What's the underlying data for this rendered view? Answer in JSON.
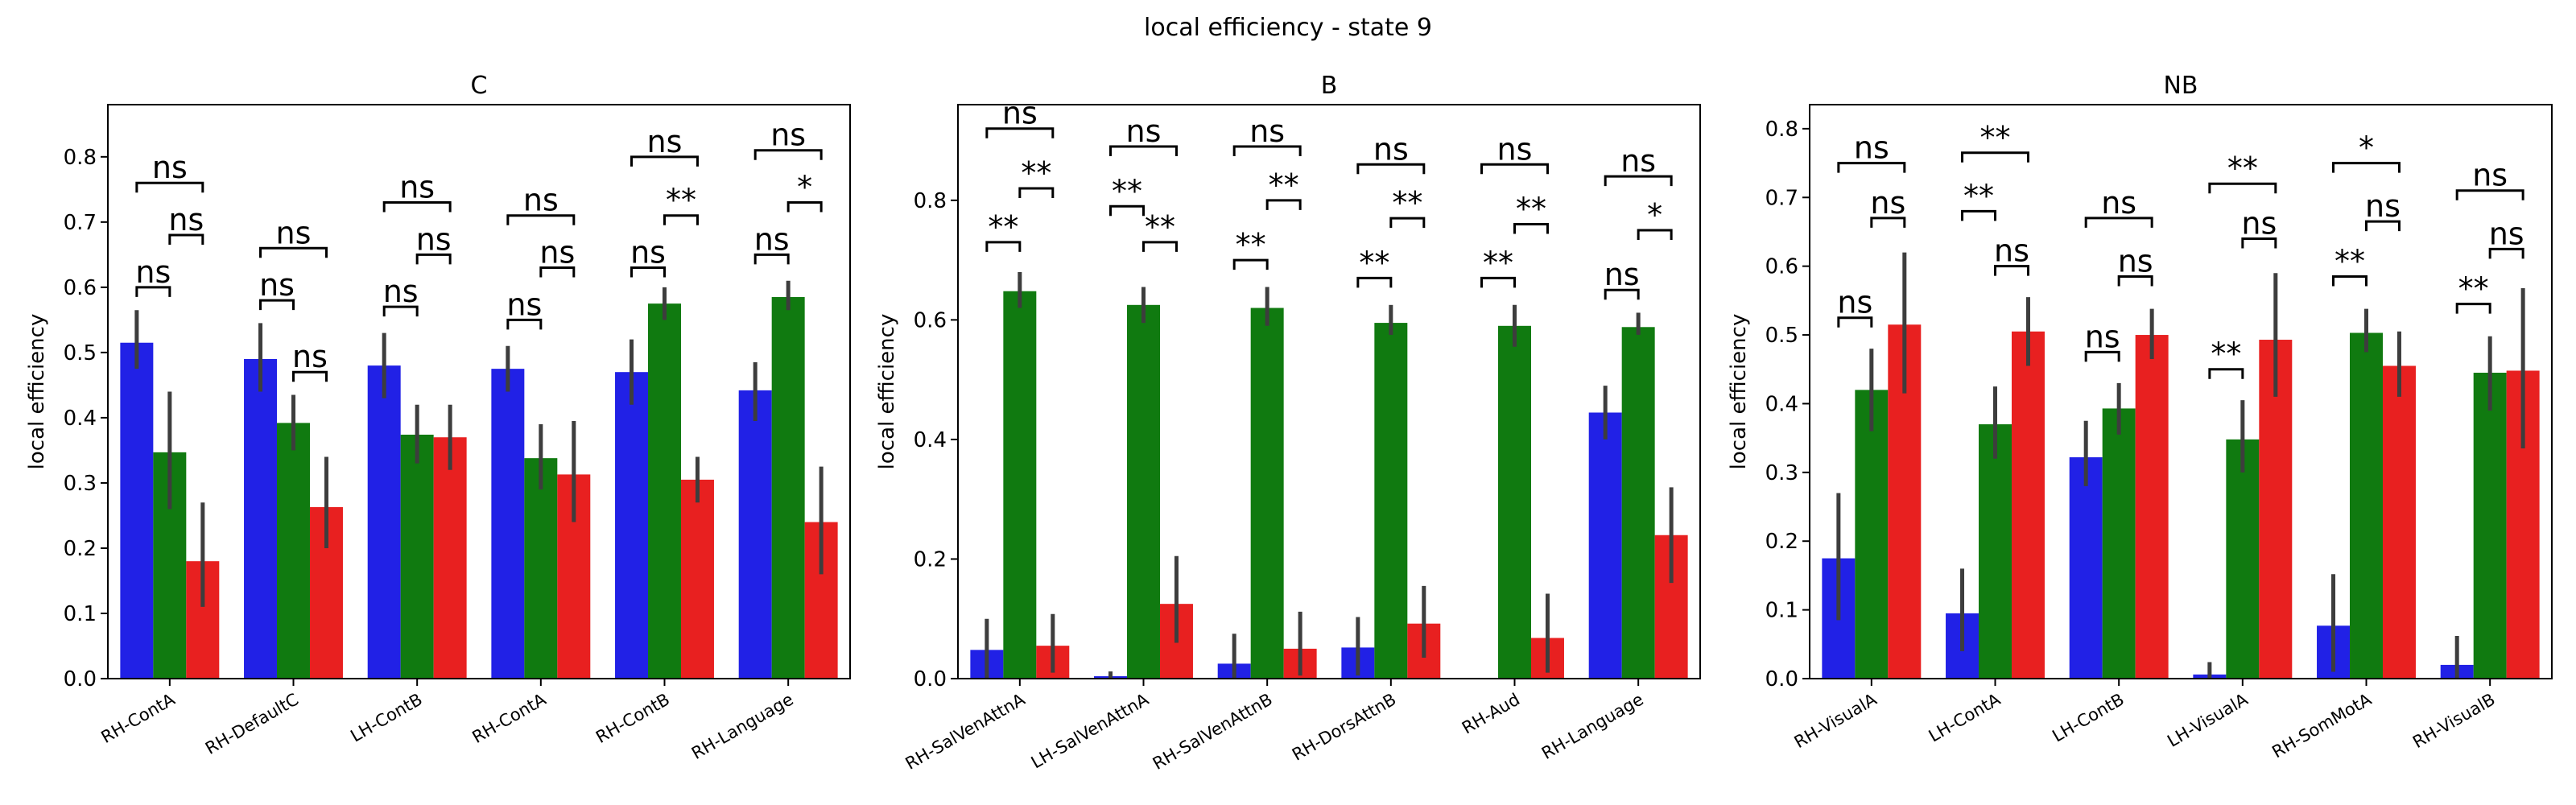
{
  "figure": {
    "title": "local efficiency - state 9",
    "colors": {
      "bar1": "#2121e6",
      "bar2": "#107a10",
      "bar3": "#e82020",
      "error_bar": "#3d3d3d",
      "frame": "#000000"
    }
  },
  "chart_data": [
    {
      "type": "bar",
      "title": "C",
      "ylabel": "local efficiency",
      "ylim": [
        0,
        0.88
      ],
      "yticks": [
        0.0,
        0.1,
        0.2,
        0.3,
        0.4,
        0.5,
        0.6,
        0.7,
        0.8
      ],
      "grid": false,
      "categories": [
        "RH-ContA",
        "RH-DefaultC",
        "LH-ContB",
        "RH-ContA",
        "RH-ContB",
        "RH-Language"
      ],
      "series": [
        {
          "values": [
            0.515,
            0.49,
            0.48,
            0.475,
            0.47,
            0.442
          ],
          "ci_low": [
            0.475,
            0.44,
            0.43,
            0.44,
            0.42,
            0.395
          ],
          "ci_high": [
            0.565,
            0.545,
            0.53,
            0.51,
            0.52,
            0.485
          ]
        },
        {
          "values": [
            0.347,
            0.392,
            0.374,
            0.338,
            0.575,
            0.585
          ],
          "ci_low": [
            0.26,
            0.35,
            0.33,
            0.29,
            0.55,
            0.565
          ],
          "ci_high": [
            0.44,
            0.435,
            0.42,
            0.39,
            0.6,
            0.61
          ]
        },
        {
          "values": [
            0.18,
            0.263,
            0.37,
            0.313,
            0.305,
            0.24
          ],
          "ci_low": [
            0.11,
            0.2,
            0.32,
            0.24,
            0.27,
            0.16
          ],
          "ci_high": [
            0.27,
            0.34,
            0.42,
            0.395,
            0.34,
            0.325
          ]
        }
      ],
      "annotations": [
        {
          "category": 0,
          "labels": [
            "ns",
            "ns",
            "ns"
          ],
          "levels": [
            0.6,
            0.68,
            0.76
          ]
        },
        {
          "category": 1,
          "labels": [
            "ns",
            "ns",
            "ns"
          ],
          "levels": [
            0.58,
            0.47,
            0.66
          ]
        },
        {
          "category": 2,
          "labels": [
            "ns",
            "ns",
            "ns"
          ],
          "levels": [
            0.57,
            0.65,
            0.73
          ]
        },
        {
          "category": 3,
          "labels": [
            "ns",
            "ns",
            "ns"
          ],
          "levels": [
            0.55,
            0.63,
            0.71
          ]
        },
        {
          "category": 4,
          "labels": [
            "ns",
            "**",
            "ns"
          ],
          "levels": [
            0.63,
            0.71,
            0.8
          ]
        },
        {
          "category": 5,
          "labels": [
            "ns",
            "*",
            "ns"
          ],
          "levels": [
            0.65,
            0.73,
            0.81
          ]
        }
      ]
    },
    {
      "type": "bar",
      "title": "B",
      "ylabel": "local efficiency",
      "ylim": [
        0,
        0.96
      ],
      "yticks": [
        0.0,
        0.2,
        0.4,
        0.6,
        0.8
      ],
      "grid": false,
      "categories": [
        "RH-SalVenAttnA",
        "LH-SalVenAttnA",
        "RH-SalVenAttnB",
        "RH-DorsAttnB",
        "RH-Aud",
        "RH-Language"
      ],
      "series": [
        {
          "values": [
            0.048,
            0.004,
            0.025,
            0.052,
            0.0,
            0.445
          ],
          "ci_low": [
            0.0,
            0.0,
            0.0,
            0.005,
            0.0,
            0.4
          ],
          "ci_high": [
            0.1,
            0.012,
            0.075,
            0.103,
            0.0,
            0.49
          ]
        },
        {
          "values": [
            0.648,
            0.625,
            0.62,
            0.595,
            0.59,
            0.588
          ],
          "ci_low": [
            0.62,
            0.595,
            0.59,
            0.575,
            0.555,
            0.575
          ],
          "ci_high": [
            0.68,
            0.655,
            0.655,
            0.625,
            0.625,
            0.612
          ]
        },
        {
          "values": [
            0.055,
            0.125,
            0.05,
            0.092,
            0.068,
            0.24
          ],
          "ci_low": [
            0.01,
            0.06,
            0.005,
            0.035,
            0.01,
            0.16
          ],
          "ci_high": [
            0.108,
            0.205,
            0.112,
            0.155,
            0.142,
            0.32
          ]
        }
      ],
      "annotations": [
        {
          "category": 0,
          "labels": [
            "**",
            "**",
            "ns"
          ],
          "levels": [
            0.73,
            0.82,
            0.92
          ]
        },
        {
          "category": 1,
          "labels": [
            "**",
            "**",
            "ns"
          ],
          "levels": [
            0.79,
            0.73,
            0.89
          ]
        },
        {
          "category": 2,
          "labels": [
            "**",
            "**",
            "ns"
          ],
          "levels": [
            0.7,
            0.8,
            0.89
          ]
        },
        {
          "category": 3,
          "labels": [
            "**",
            "**",
            "ns"
          ],
          "levels": [
            0.67,
            0.77,
            0.86
          ]
        },
        {
          "category": 4,
          "labels": [
            "**",
            "**",
            "ns"
          ],
          "levels": [
            0.67,
            0.76,
            0.86
          ]
        },
        {
          "category": 5,
          "labels": [
            "ns",
            "*",
            "ns"
          ],
          "levels": [
            0.65,
            0.75,
            0.84
          ]
        }
      ]
    },
    {
      "type": "bar",
      "title": "NB",
      "ylabel": "local efficiency",
      "ylim": [
        0,
        0.835
      ],
      "yticks": [
        0.0,
        0.1,
        0.2,
        0.3,
        0.4,
        0.5,
        0.6,
        0.7,
        0.8
      ],
      "grid": false,
      "categories": [
        "RH-VisualA",
        "LH-ContA",
        "LH-ContB",
        "LH-VisualA",
        "RH-SomMotA",
        "RH-VisualB"
      ],
      "series": [
        {
          "values": [
            0.175,
            0.095,
            0.322,
            0.006,
            0.077,
            0.02
          ],
          "ci_low": [
            0.085,
            0.04,
            0.28,
            0.0,
            0.01,
            0.0
          ],
          "ci_high": [
            0.27,
            0.16,
            0.375,
            0.024,
            0.152,
            0.062
          ]
        },
        {
          "values": [
            0.42,
            0.37,
            0.393,
            0.348,
            0.503,
            0.445
          ],
          "ci_low": [
            0.36,
            0.32,
            0.355,
            0.3,
            0.475,
            0.39
          ],
          "ci_high": [
            0.48,
            0.425,
            0.43,
            0.405,
            0.538,
            0.498
          ]
        },
        {
          "values": [
            0.515,
            0.505,
            0.5,
            0.493,
            0.455,
            0.448
          ],
          "ci_low": [
            0.415,
            0.455,
            0.465,
            0.41,
            0.41,
            0.335
          ],
          "ci_high": [
            0.62,
            0.555,
            0.538,
            0.59,
            0.505,
            0.568
          ]
        }
      ],
      "annotations": [
        {
          "category": 0,
          "labels": [
            "ns",
            "ns",
            "ns"
          ],
          "levels": [
            0.525,
            0.67,
            0.75
          ]
        },
        {
          "category": 1,
          "labels": [
            "**",
            "ns",
            "**"
          ],
          "levels": [
            0.68,
            0.6,
            0.765
          ]
        },
        {
          "category": 2,
          "labels": [
            "ns",
            "ns",
            "ns"
          ],
          "levels": [
            0.475,
            0.585,
            0.67
          ]
        },
        {
          "category": 3,
          "labels": [
            "**",
            "ns",
            "**"
          ],
          "levels": [
            0.45,
            0.64,
            0.72
          ]
        },
        {
          "category": 4,
          "labels": [
            "**",
            "ns",
            "*"
          ],
          "levels": [
            0.585,
            0.665,
            0.75
          ]
        },
        {
          "category": 5,
          "labels": [
            "**",
            "ns",
            "ns"
          ],
          "levels": [
            0.545,
            0.625,
            0.71
          ]
        }
      ]
    }
  ]
}
